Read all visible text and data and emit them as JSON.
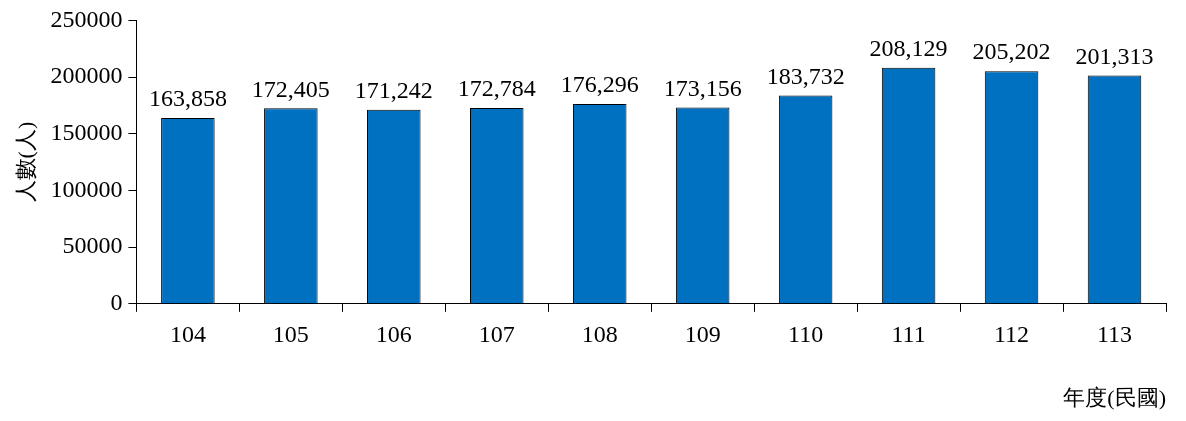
{
  "chart_data": {
    "type": "bar",
    "xlabel": "年度(民國)",
    "ylabel": "人數(人)",
    "categories": [
      "104",
      "105",
      "106",
      "107",
      "108",
      "109",
      "110",
      "111",
      "112",
      "113"
    ],
    "values": [
      163858,
      172405,
      171242,
      172784,
      176296,
      173156,
      183732,
      208129,
      205202,
      201313
    ],
    "value_labels": [
      "163,858",
      "172,405",
      "171,242",
      "172,784",
      "176,296",
      "173,156",
      "183,732",
      "208,129",
      "205,202",
      "201,313"
    ],
    "color": "#0070c0",
    "ylim": [
      0,
      250000
    ],
    "yticks": [
      0,
      50000,
      100000,
      150000,
      200000,
      250000
    ],
    "grid": false,
    "legend": false
  }
}
